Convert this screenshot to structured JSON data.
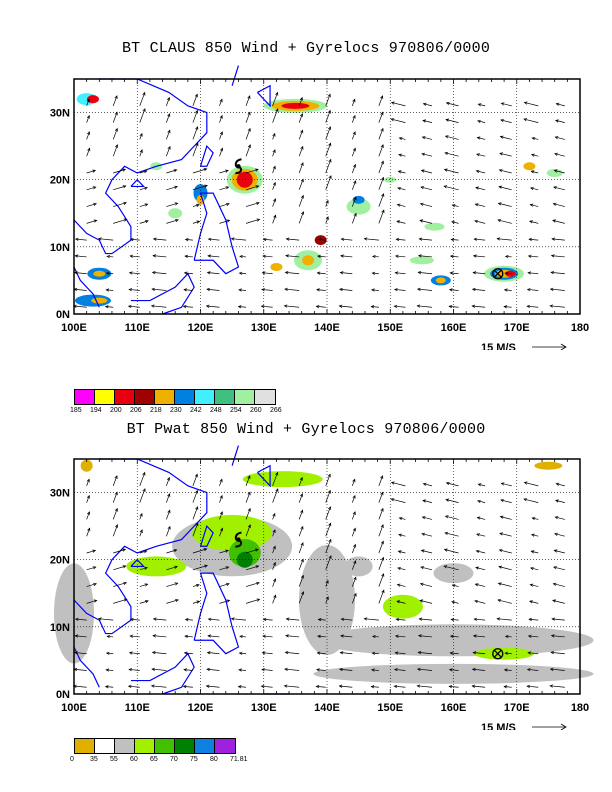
{
  "panel1": {
    "title": "BT CLAUS 850 Wind + Gyrelocs 970806/0000",
    "lat_labels": [
      "30N",
      "20N",
      "10N",
      "0N"
    ],
    "lon_labels": [
      "100E",
      "110E",
      "120E",
      "130E",
      "140E",
      "150E",
      "160E",
      "170E",
      "180"
    ],
    "scale_label": "15 M/S",
    "legend": {
      "colors": [
        "#ff00ff",
        "#ffff00",
        "#e8000f",
        "#a00000",
        "#f0b000",
        "#0080e0",
        "#40f0ff",
        "#40c080",
        "#a0f0a0",
        "#e0e0e0"
      ],
      "labels": [
        "185",
        "194",
        "200",
        "206",
        "218",
        "230",
        "242",
        "248",
        "254",
        "260",
        "266"
      ]
    }
  },
  "panel2": {
    "title": "BT Pwat 850 Wind + Gyrelocs 970806/0000",
    "lat_labels": [
      "30N",
      "20N",
      "10N",
      "0N"
    ],
    "lon_labels": [
      "100E",
      "110E",
      "120E",
      "130E",
      "140E",
      "150E",
      "160E",
      "170E",
      "180"
    ],
    "scale_label": "15 M/S",
    "legend": {
      "colors": [
        "#e0b000",
        "#ffffff",
        "#c0c0c0",
        "#a0f000",
        "#40c000",
        "#008000",
        "#1080e0",
        "#a020e0"
      ],
      "labels": [
        "0",
        "35",
        "55",
        "60",
        "65",
        "70",
        "75",
        "80",
        "71.81"
      ]
    }
  },
  "map_colors": {
    "coast": "#0000ff",
    "gyre_marker": "#000000"
  }
}
